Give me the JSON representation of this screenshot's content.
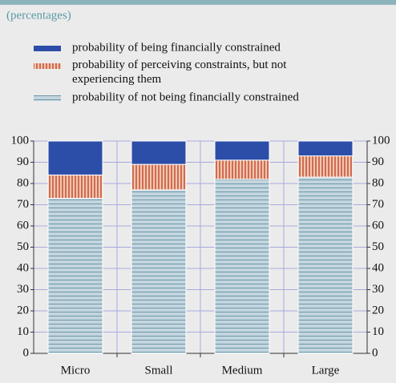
{
  "chart_data": {
    "type": "stacked_bar",
    "subtitle": "(percentages)",
    "categories": [
      "Micro",
      "Small",
      "Medium",
      "Large"
    ],
    "series": [
      {
        "name": "probability of being financially constrained",
        "color": "#2c4ea8",
        "values": [
          16,
          11,
          9,
          7
        ]
      },
      {
        "name": "probability of perceiving constraints, but not experiencing them",
        "color": "#e07a58",
        "values": [
          11,
          12,
          9,
          10
        ]
      },
      {
        "name": "probability of not being financially constrained",
        "color": "#b8cdd8",
        "values": [
          73,
          77,
          82,
          83
        ]
      }
    ],
    "ylim": [
      0,
      100
    ],
    "yticks": [
      0,
      10,
      20,
      30,
      40,
      50,
      60,
      70,
      80,
      90,
      100
    ],
    "y2lim": [
      0,
      100
    ],
    "y2ticks": [
      0,
      10,
      20,
      30,
      40,
      50,
      60,
      70,
      80,
      90,
      100
    ],
    "grid": true
  }
}
